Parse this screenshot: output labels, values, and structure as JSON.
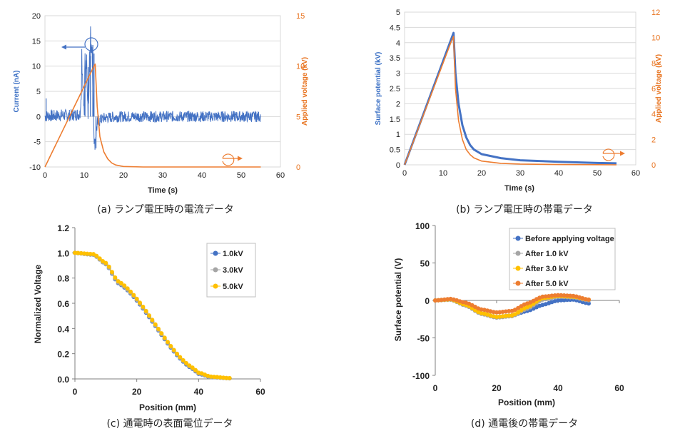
{
  "colors": {
    "blue": "#4472c4",
    "orange": "#ed7d31",
    "gray": "#a5a5a5",
    "yellow": "#ffc000"
  },
  "chart_data": [
    {
      "id": "a",
      "type": "line",
      "caption": "(a) ランプ電圧時の電流データ",
      "xlabel": "Time (s)",
      "ylabel": "Current (nA)",
      "y2label": "Applied voltage (kV)",
      "xlim": [
        0,
        60
      ],
      "ylim": [
        -10,
        20
      ],
      "y2lim": [
        0,
        15
      ],
      "xticks": [
        "0",
        "10",
        "20",
        "30",
        "40",
        "50",
        "60"
      ],
      "yticks": [
        "-10",
        "-5",
        "0",
        "5",
        "10",
        "15",
        "20"
      ],
      "y2ticks": [
        "0",
        "5",
        "10",
        "15"
      ],
      "grid": "horizontal",
      "series": [
        {
          "axis": "left",
          "color": "blue",
          "note": "noisy current",
          "x": [
            0,
            1,
            2,
            4,
            6,
            8,
            9,
            9.5,
            10,
            10.5,
            11,
            11.5,
            12,
            12.3,
            12.6,
            12.9,
            13.2,
            13.6,
            14,
            15,
            17,
            20,
            30,
            40,
            50,
            55
          ],
          "y": [
            0,
            0.2,
            0.1,
            0.3,
            0.2,
            0.4,
            0.5,
            9,
            0.3,
            10,
            0.4,
            12,
            14,
            2,
            -6,
            -4,
            -2,
            -1,
            -0.7,
            -0.3,
            -0.1,
            0,
            0,
            0,
            0,
            0
          ]
        },
        {
          "axis": "right",
          "color": "orange",
          "x": [
            0,
            2,
            4,
            6,
            8,
            10,
            12,
            12.8,
            13.3,
            14,
            15,
            16,
            17,
            18,
            20,
            25,
            30,
            40,
            50,
            55
          ],
          "y": [
            0,
            1.6,
            3.2,
            4.8,
            6.4,
            8,
            9.6,
            10.2,
            6,
            3,
            1.5,
            0.8,
            0.4,
            0.2,
            0.05,
            0,
            0,
            0,
            0,
            0
          ]
        }
      ]
    },
    {
      "id": "b",
      "type": "line",
      "caption": "(b) ランプ電圧時の帯電データ",
      "xlabel": "Time (s)",
      "ylabel": "Surface potential (kV)",
      "y2label": "Applied voltage (kV)",
      "xlim": [
        0,
        60
      ],
      "ylim": [
        0,
        5
      ],
      "y2lim": [
        0,
        12
      ],
      "xticks": [
        "0",
        "10",
        "20",
        "30",
        "40",
        "50",
        "60"
      ],
      "yticks": [
        "0",
        "0.5",
        "1",
        "1.5",
        "2",
        "2.5",
        "3",
        "3.5",
        "4",
        "4.5",
        "5"
      ],
      "y2ticks": [
        "0",
        "2",
        "4",
        "6",
        "8",
        "10",
        "12"
      ],
      "grid": "horizontal",
      "series": [
        {
          "axis": "left",
          "color": "blue",
          "x": [
            0,
            2,
            4,
            6,
            8,
            10,
            12,
            12.7,
            13.2,
            14,
            15,
            16,
            17,
            18,
            20,
            25,
            30,
            40,
            50,
            55
          ],
          "y": [
            0,
            0.68,
            1.36,
            2.04,
            2.72,
            3.4,
            4.08,
            4.32,
            3,
            2,
            1.3,
            0.9,
            0.65,
            0.5,
            0.35,
            0.22,
            0.15,
            0.1,
            0.06,
            0.05
          ]
        },
        {
          "axis": "right",
          "color": "orange",
          "x": [
            0,
            2,
            4,
            6,
            8,
            10,
            12,
            12.7,
            13.2,
            14,
            15,
            16,
            17,
            18,
            20,
            25,
            30,
            40,
            50,
            55
          ],
          "y": [
            0,
            1.6,
            3.2,
            4.8,
            6.4,
            8,
            9.6,
            10.1,
            6,
            3.5,
            2,
            1.2,
            0.8,
            0.55,
            0.3,
            0.12,
            0.06,
            0.02,
            0.01,
            0
          ]
        }
      ]
    },
    {
      "id": "c",
      "type": "scatter",
      "caption": "(c) 通電時の表面電位データ",
      "xlabel": "Position (mm)",
      "ylabel": "Normalized Voltage",
      "xlim": [
        0,
        60
      ],
      "ylim": [
        0,
        1.2
      ],
      "xticks": [
        "0",
        "20",
        "40",
        "60"
      ],
      "yticks": [
        "0.0",
        "0.2",
        "0.4",
        "0.6",
        "0.8",
        "1.0",
        "1.2"
      ],
      "grid": "none",
      "legend_position": "top-right",
      "series": [
        {
          "name": "1.0kV",
          "color": "blue",
          "profile": [
            [
              0,
              1
            ],
            [
              6,
              0.985
            ],
            [
              10,
              0.91
            ],
            [
              14,
              0.76
            ],
            [
              38,
              0.08
            ],
            [
              40,
              0.04
            ],
            [
              44,
              0.015
            ],
            [
              50,
              0.005
            ]
          ]
        },
        {
          "name": "3.0kV",
          "color": "gray",
          "profile": [
            [
              0,
              1
            ],
            [
              6,
              0.985
            ],
            [
              10,
              0.91
            ],
            [
              14,
              0.765
            ],
            [
              38,
              0.085
            ],
            [
              40,
              0.045
            ],
            [
              44,
              0.015
            ],
            [
              50,
              0.005
            ]
          ]
        },
        {
          "name": "5.0kV",
          "color": "yellow",
          "profile": [
            [
              0,
              1
            ],
            [
              6,
              0.99
            ],
            [
              10,
              0.92
            ],
            [
              14,
              0.775
            ],
            [
              38,
              0.09
            ],
            [
              40,
              0.05
            ],
            [
              44,
              0.018
            ],
            [
              50,
              0.006
            ]
          ]
        }
      ]
    },
    {
      "id": "d",
      "type": "scatter",
      "caption": "(d) 通電後の帯電データ",
      "xlabel": "Position (mm)",
      "ylabel": "Surface potential (V)",
      "xlim": [
        0,
        60
      ],
      "ylim": [
        -100,
        100
      ],
      "xticks": [
        "0",
        "20",
        "40",
        "60"
      ],
      "yticks": [
        "-100",
        "-50",
        "0",
        "50",
        "100"
      ],
      "grid": "none",
      "legend_position": "top-right",
      "series": [
        {
          "name": "Before applying voltage",
          "color": "blue",
          "profile": [
            [
              0,
              0
            ],
            [
              5,
              1
            ],
            [
              10,
              -6
            ],
            [
              15,
              -17
            ],
            [
              20,
              -22
            ],
            [
              25,
              -20
            ],
            [
              30,
              -14
            ],
            [
              35,
              -6
            ],
            [
              40,
              0
            ],
            [
              45,
              1
            ],
            [
              50,
              -4
            ]
          ]
        },
        {
          "name": "After 1.0 kV",
          "color": "gray",
          "profile": [
            [
              0,
              0
            ],
            [
              5,
              1
            ],
            [
              10,
              -7
            ],
            [
              15,
              -18
            ],
            [
              20,
              -23
            ],
            [
              25,
              -21
            ],
            [
              30,
              -11
            ],
            [
              35,
              1
            ],
            [
              40,
              5
            ],
            [
              45,
              4
            ],
            [
              50,
              0
            ]
          ]
        },
        {
          "name": "After 3.0 kV",
          "color": "yellow",
          "profile": [
            [
              0,
              0
            ],
            [
              5,
              1.5
            ],
            [
              10,
              -6
            ],
            [
              15,
              -17
            ],
            [
              20,
              -22
            ],
            [
              25,
              -20
            ],
            [
              30,
              -9
            ],
            [
              35,
              3
            ],
            [
              40,
              6
            ],
            [
              45,
              5
            ],
            [
              50,
              1
            ]
          ]
        },
        {
          "name": "After 5.0 kV",
          "color": "orange",
          "profile": [
            [
              0,
              0
            ],
            [
              5,
              2
            ],
            [
              10,
              -3
            ],
            [
              15,
              -12
            ],
            [
              20,
              -16
            ],
            [
              25,
              -14
            ],
            [
              30,
              -4
            ],
            [
              35,
              5
            ],
            [
              40,
              7
            ],
            [
              45,
              6
            ],
            [
              50,
              1
            ]
          ]
        }
      ]
    }
  ]
}
